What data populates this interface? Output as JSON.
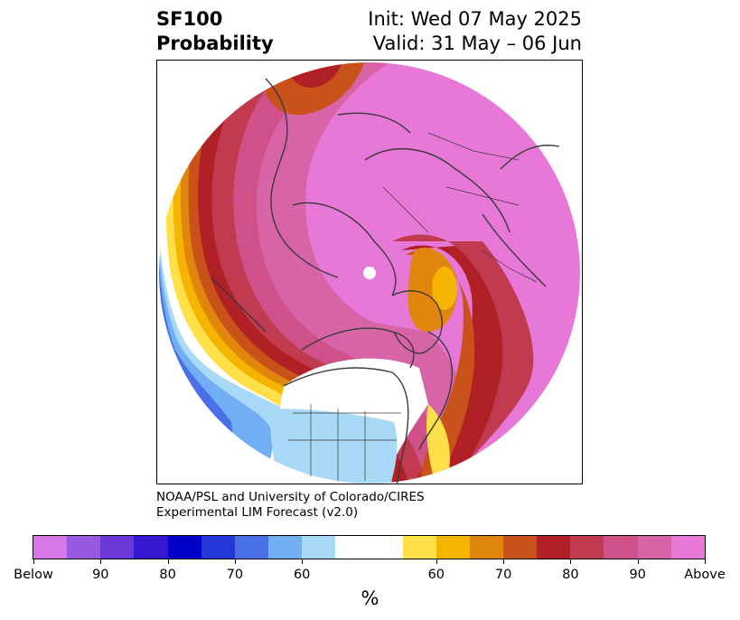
{
  "title": {
    "variable": "SF100",
    "kind": "Probability",
    "init": "Init: Wed 07 May 2025",
    "valid": "Valid: 31 May – 06 Jun"
  },
  "credit": {
    "line1": "NOAA/PSL and University of Colorado/CIRES",
    "line2": "Experimental LIM Forecast (v2.0)"
  },
  "colorbar": {
    "unit": "%",
    "colors": [
      "#d878e8",
      "#9b58e0",
      "#6a38d8",
      "#3518d0",
      "#0000c8",
      "#2438d8",
      "#4a70e8",
      "#72aef4",
      "#a8daf8",
      "#ffffff",
      "#ffe048",
      "#f4b400",
      "#e0860c",
      "#c8521a",
      "#b02024",
      "#c03a50",
      "#d0508a",
      "#d864a8",
      "#e878d8"
    ],
    "labels": [
      "Below",
      "90",
      "80",
      "70",
      "60",
      "60",
      "70",
      "80",
      "90",
      "Above"
    ]
  },
  "map": {
    "projection": "north-polar stereographic",
    "regions": "Northern Hemisphere, centered on North Pole with North America at bottom"
  }
}
